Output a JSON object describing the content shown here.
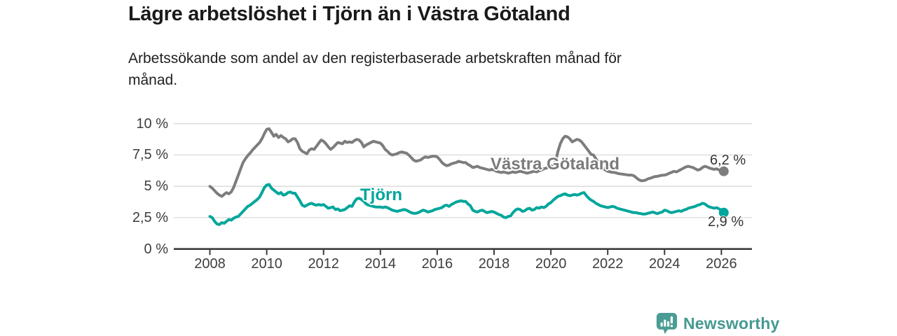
{
  "header": {
    "title": "Lägre arbetslöshet i Tjörn än i Västra Götaland",
    "subtitle_line1": "Arbetssökande som andel av den registerbaserade arbetskraften månad för",
    "subtitle_line2": "månad."
  },
  "footer": {
    "brand": "Newsworthy",
    "brand_color": "#459a92"
  },
  "chart_data": {
    "type": "line",
    "title": "Lägre arbetslöshet i Tjörn än i Västra Götaland",
    "unit": "%",
    "frequency": "monthly",
    "x_start": "2008-01",
    "x_end": "2026-02",
    "xlim": [
      2006.7,
      2027.1
    ],
    "ylim": [
      0,
      10.5
    ],
    "grid": "horizontal",
    "legend_position": "inline-labels",
    "y_ticks": [
      {
        "value": 10,
        "label": "10 %"
      },
      {
        "value": 7.5,
        "label": "7,5 %"
      },
      {
        "value": 5,
        "label": "5 %"
      },
      {
        "value": 2.5,
        "label": "2,5 %"
      },
      {
        "value": 0,
        "label": "0 %"
      }
    ],
    "x_ticks": [
      {
        "value": 2008,
        "label": "2008"
      },
      {
        "value": 2010,
        "label": "2010"
      },
      {
        "value": 2012,
        "label": "2012"
      },
      {
        "value": 2014,
        "label": "2014"
      },
      {
        "value": 2016,
        "label": "2016"
      },
      {
        "value": 2018,
        "label": "2018"
      },
      {
        "value": 2020,
        "label": "2020"
      },
      {
        "value": 2022,
        "label": "2022"
      },
      {
        "value": 2024,
        "label": "2024"
      },
      {
        "value": 2026,
        "label": "2026"
      }
    ],
    "series": [
      {
        "name": "Västra Götaland",
        "color": "#7d7d7d",
        "end_label": "6,2 %",
        "end_value": 6.2,
        "values": [
          5.0,
          4.85,
          4.65,
          4.45,
          4.3,
          4.2,
          4.35,
          4.5,
          4.4,
          4.55,
          4.9,
          5.4,
          5.9,
          6.4,
          6.9,
          7.2,
          7.45,
          7.65,
          7.9,
          8.1,
          8.3,
          8.5,
          8.8,
          9.2,
          9.55,
          9.6,
          9.3,
          9.0,
          9.15,
          8.9,
          9.05,
          8.9,
          8.8,
          8.55,
          8.65,
          8.8,
          8.8,
          8.5,
          8.0,
          7.8,
          7.7,
          7.6,
          7.9,
          8.0,
          7.95,
          8.2,
          8.45,
          8.7,
          8.6,
          8.4,
          8.15,
          7.95,
          8.1,
          8.3,
          8.5,
          8.45,
          8.4,
          8.6,
          8.5,
          8.55,
          8.5,
          8.65,
          8.75,
          8.7,
          8.5,
          8.15,
          8.3,
          8.4,
          8.5,
          8.6,
          8.55,
          8.5,
          8.45,
          8.25,
          7.95,
          7.8,
          7.6,
          7.5,
          7.55,
          7.6,
          7.7,
          7.75,
          7.7,
          7.65,
          7.5,
          7.3,
          7.1,
          7.0,
          7.05,
          7.1,
          7.25,
          7.35,
          7.3,
          7.35,
          7.4,
          7.4,
          7.35,
          7.15,
          6.9,
          6.75,
          6.65,
          6.7,
          6.8,
          6.85,
          6.9,
          7.0,
          6.95,
          6.9,
          6.9,
          6.75,
          6.65,
          6.5,
          6.55,
          6.6,
          6.5,
          6.45,
          6.4,
          6.35,
          6.3,
          6.35,
          6.3,
          6.2,
          6.15,
          6.1,
          6.15,
          6.1,
          6.05,
          6.1,
          6.15,
          6.1,
          6.15,
          6.2,
          6.15,
          6.1,
          6.05,
          6.1,
          6.15,
          6.2,
          6.15,
          6.25,
          6.3,
          6.4,
          6.45,
          6.55,
          6.6,
          6.7,
          7.0,
          7.8,
          8.4,
          8.8,
          9.0,
          8.95,
          8.8,
          8.55,
          8.65,
          8.75,
          8.7,
          8.55,
          8.3,
          8.05,
          7.8,
          7.55,
          7.5,
          7.2,
          6.9,
          6.6,
          6.45,
          6.3,
          6.2,
          6.15,
          6.12,
          6.1,
          6.05,
          6.0,
          5.98,
          5.95,
          5.92,
          5.9,
          5.9,
          5.85,
          5.7,
          5.55,
          5.45,
          5.45,
          5.5,
          5.6,
          5.65,
          5.72,
          5.78,
          5.8,
          5.85,
          5.88,
          5.9,
          5.95,
          6.05,
          6.12,
          6.2,
          6.15,
          6.25,
          6.35,
          6.45,
          6.55,
          6.6,
          6.55,
          6.5,
          6.4,
          6.3,
          6.35,
          6.5,
          6.6,
          6.55,
          6.45,
          6.4,
          6.35,
          6.4,
          6.3,
          6.25,
          6.2
        ]
      },
      {
        "name": "Tjörn",
        "color": "#00a69b",
        "end_label": "2,9 %",
        "end_value": 2.9,
        "values": [
          2.6,
          2.5,
          2.2,
          2.0,
          1.95,
          2.1,
          2.05,
          2.2,
          2.35,
          2.3,
          2.45,
          2.55,
          2.6,
          2.8,
          3.0,
          3.2,
          3.4,
          3.5,
          3.65,
          3.8,
          3.95,
          4.15,
          4.5,
          4.9,
          5.1,
          5.15,
          4.85,
          4.7,
          4.55,
          4.4,
          4.5,
          4.3,
          4.35,
          4.5,
          4.55,
          4.45,
          4.45,
          4.15,
          3.85,
          3.5,
          3.4,
          3.5,
          3.6,
          3.65,
          3.55,
          3.5,
          3.55,
          3.5,
          3.55,
          3.4,
          3.25,
          3.3,
          3.35,
          3.15,
          3.2,
          3.05,
          3.1,
          3.15,
          3.3,
          3.45,
          3.4,
          3.75,
          4.0,
          4.05,
          3.95,
          3.8,
          3.6,
          3.5,
          3.45,
          3.4,
          3.35,
          3.35,
          3.35,
          3.3,
          3.35,
          3.3,
          3.2,
          3.1,
          3.05,
          3.0,
          3.05,
          3.1,
          3.15,
          3.1,
          3.0,
          2.9,
          2.85,
          2.85,
          2.9,
          3.0,
          3.1,
          3.05,
          2.95,
          3.0,
          3.05,
          3.15,
          3.2,
          3.25,
          3.3,
          3.45,
          3.5,
          3.4,
          3.55,
          3.65,
          3.75,
          3.8,
          3.85,
          3.8,
          3.8,
          3.6,
          3.45,
          3.1,
          3.0,
          2.95,
          3.05,
          3.1,
          3.0,
          2.9,
          2.95,
          3.0,
          2.95,
          2.85,
          2.75,
          2.7,
          2.55,
          2.5,
          2.6,
          2.65,
          2.9,
          3.1,
          3.2,
          3.15,
          3.0,
          3.05,
          3.2,
          3.25,
          3.1,
          3.15,
          3.3,
          3.25,
          3.35,
          3.3,
          3.4,
          3.6,
          3.7,
          3.9,
          4.05,
          4.2,
          4.25,
          4.35,
          4.4,
          4.3,
          4.25,
          4.3,
          4.35,
          4.3,
          4.35,
          4.45,
          4.5,
          4.25,
          4.05,
          3.9,
          3.8,
          3.65,
          3.55,
          3.45,
          3.4,
          3.35,
          3.3,
          3.35,
          3.4,
          3.35,
          3.25,
          3.2,
          3.15,
          3.1,
          3.05,
          3.0,
          2.95,
          2.9,
          2.9,
          2.85,
          2.82,
          2.78,
          2.8,
          2.85,
          2.9,
          2.95,
          2.88,
          2.82,
          2.9,
          2.95,
          3.1,
          3.05,
          2.95,
          2.9,
          2.95,
          3.0,
          3.05,
          3.0,
          3.1,
          3.15,
          3.25,
          3.3,
          3.35,
          3.4,
          3.5,
          3.55,
          3.65,
          3.6,
          3.45,
          3.35,
          3.3,
          3.25,
          3.3,
          3.2,
          3.1,
          2.9
        ]
      }
    ]
  }
}
